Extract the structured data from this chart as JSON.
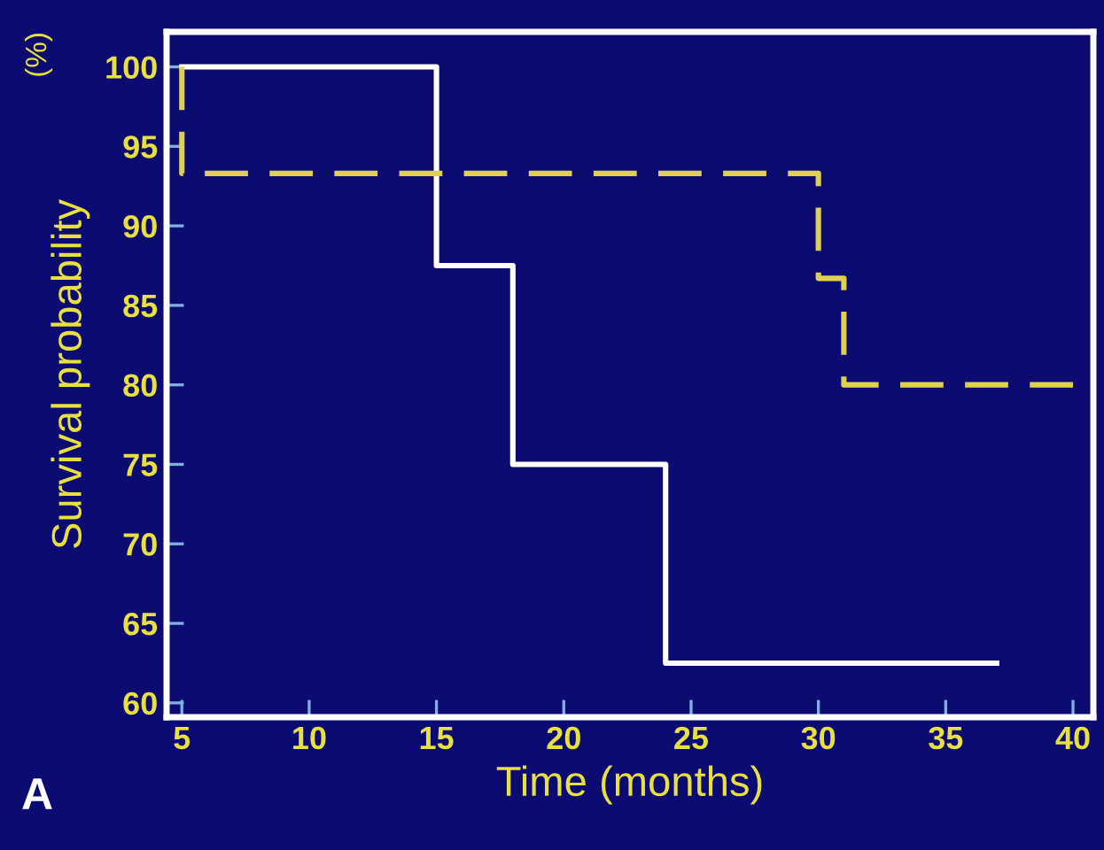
{
  "chart_data": {
    "type": "step",
    "xlabel": "Time (months)",
    "ylabel": "Survival probability",
    "annotations": [
      "(%)",
      "A"
    ],
    "series": [
      {
        "color": "#ffffff",
        "line_style": "solid",
        "x": [
          5,
          15,
          18,
          24,
          37
        ],
        "values": [
          100,
          87.5,
          75,
          62.5,
          62.5
        ]
      },
      {
        "color": "#e0d050",
        "line_style": "dashed",
        "x": [
          5,
          5,
          30,
          31,
          40
        ],
        "values": [
          100,
          93.3,
          86.7,
          80,
          80
        ]
      }
    ],
    "xlim": [
      4.4,
      40.8
    ],
    "ylim": [
      59.1,
      102.2
    ],
    "xticks": [
      5,
      10,
      15,
      20,
      25,
      30,
      35,
      40
    ],
    "yticks": [
      60,
      65,
      70,
      75,
      80,
      85,
      90,
      95,
      100
    ],
    "grid": false,
    "legend": false,
    "marker": "none"
  }
}
